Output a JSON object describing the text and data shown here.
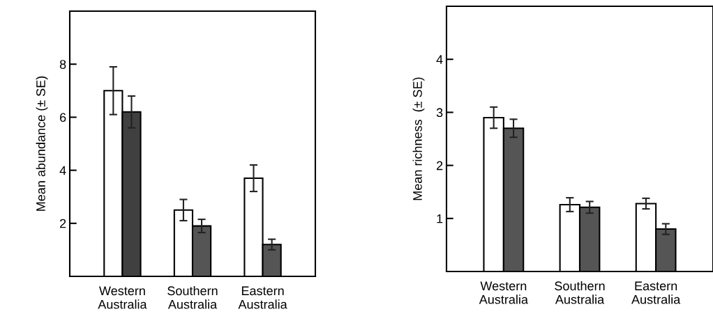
{
  "chart_data": [
    {
      "type": "bar",
      "ylabel": "Mean abundance (± SE)",
      "categories": [
        "Western\nAustralia",
        "Southern\nAustralia",
        "Eastern\nAustralia"
      ],
      "ylim": [
        0,
        10
      ],
      "yticks": [
        2,
        4,
        6,
        8
      ],
      "grid": false,
      "series": [
        {
          "colors": [
            "#ffffff",
            "#ffffff",
            "#ffffff"
          ],
          "values": [
            7.0,
            2.5,
            3.7
          ],
          "errors": [
            0.9,
            0.4,
            0.5
          ]
        },
        {
          "colors": [
            "#404040",
            "#555555",
            "#555555"
          ],
          "values": [
            6.2,
            1.9,
            1.2
          ],
          "errors": [
            0.6,
            0.25,
            0.2
          ]
        }
      ]
    },
    {
      "type": "bar",
      "ylabel": "Mean richness  (± SE)",
      "categories": [
        "Western\nAustralia",
        "Southern\nAustralia",
        "Eastern\nAustralia"
      ],
      "ylim": [
        0,
        5
      ],
      "yticks": [
        1,
        2,
        3,
        4
      ],
      "grid": false,
      "series": [
        {
          "colors": [
            "#ffffff",
            "#ffffff",
            "#ffffff"
          ],
          "values": [
            2.9,
            1.26,
            1.28
          ],
          "errors": [
            0.2,
            0.13,
            0.1
          ]
        },
        {
          "colors": [
            "#555555",
            "#555555",
            "#555555"
          ],
          "values": [
            2.7,
            1.21,
            0.8
          ],
          "errors": [
            0.17,
            0.11,
            0.1
          ]
        }
      ]
    }
  ]
}
